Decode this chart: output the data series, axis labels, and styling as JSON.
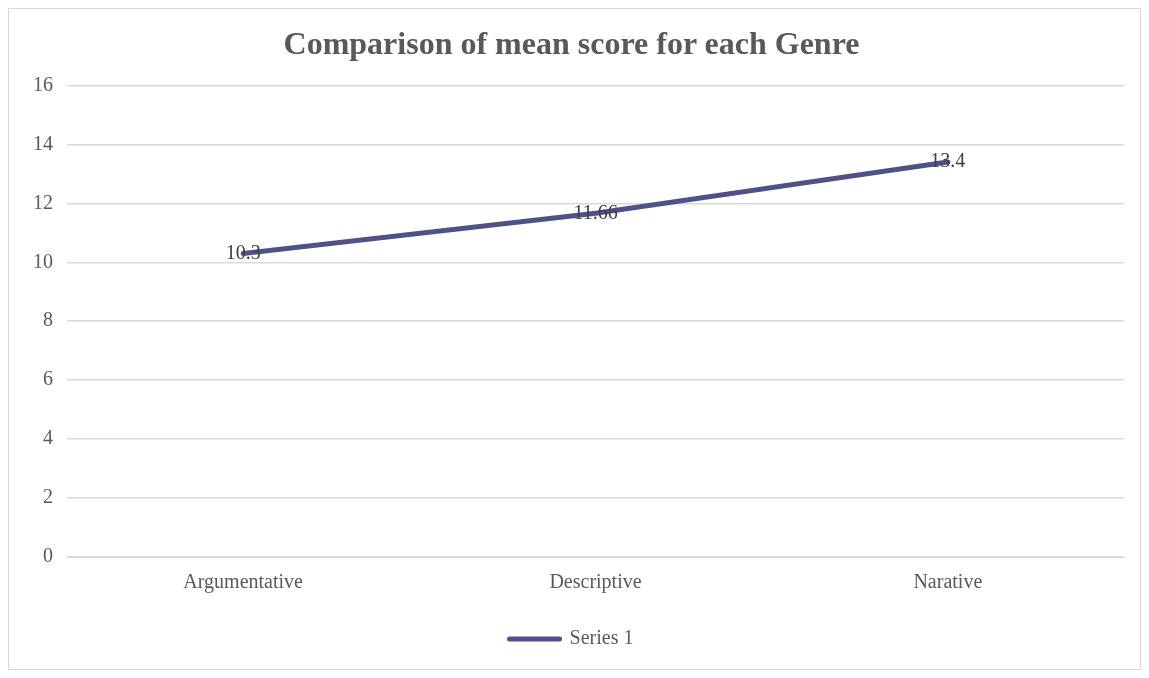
{
  "chart_data": {
    "type": "line",
    "title": "Comparison of mean score for each Genre",
    "categories": [
      "Argumentative",
      "Descriptive",
      "Narative"
    ],
    "series": [
      {
        "name": "Series 1",
        "color": "#4f5187",
        "values": [
          10.3,
          11.66,
          13.4
        ]
      }
    ],
    "ylim": [
      0,
      16
    ],
    "yticks": [
      0,
      2,
      4,
      6,
      8,
      10,
      12,
      14,
      16
    ],
    "grid": "y",
    "legend": "bottom",
    "data_labels": true,
    "marker": "none",
    "line_style": "solid"
  }
}
